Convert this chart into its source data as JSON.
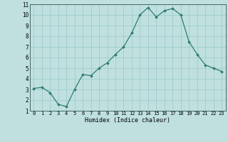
{
  "x": [
    0,
    1,
    2,
    3,
    4,
    5,
    6,
    7,
    8,
    9,
    10,
    11,
    12,
    13,
    14,
    15,
    16,
    17,
    18,
    19,
    20,
    21,
    22,
    23
  ],
  "y": [
    3.1,
    3.2,
    2.7,
    1.6,
    1.4,
    3.0,
    4.4,
    4.3,
    5.0,
    5.5,
    6.3,
    7.0,
    8.3,
    10.0,
    10.7,
    9.8,
    10.4,
    10.6,
    10.0,
    7.5,
    6.3,
    5.3,
    5.0,
    4.7
  ],
  "xlabel": "Humidex (Indice chaleur)",
  "ylim": [
    1,
    11
  ],
  "xlim_min": -0.5,
  "xlim_max": 23.5,
  "yticks": [
    1,
    2,
    3,
    4,
    5,
    6,
    7,
    8,
    9,
    10,
    11
  ],
  "xticks": [
    0,
    1,
    2,
    3,
    4,
    5,
    6,
    7,
    8,
    9,
    10,
    11,
    12,
    13,
    14,
    15,
    16,
    17,
    18,
    19,
    20,
    21,
    22,
    23
  ],
  "line_color": "#2e7d6e",
  "marker_color": "#2e7d6e",
  "bg_color": "#c0e0e0",
  "grid_color": "#98c8c8",
  "bottom_bar_color": "#5a7a7a"
}
